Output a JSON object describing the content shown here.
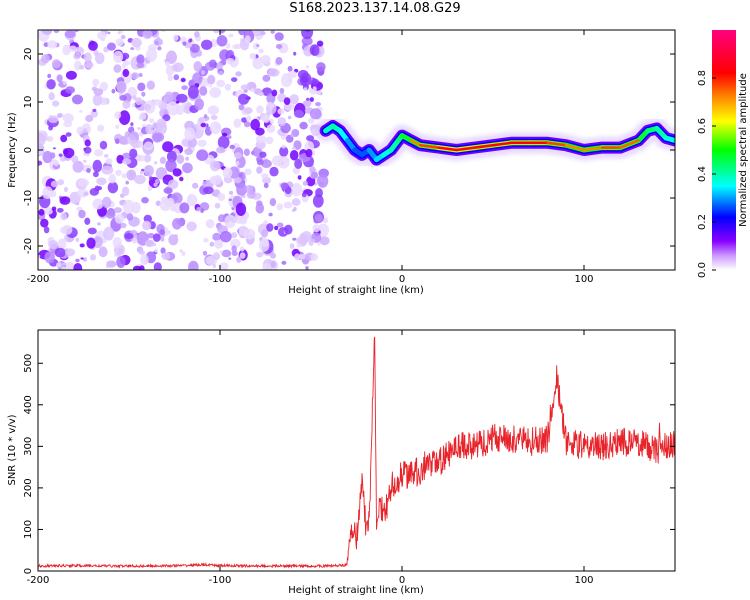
{
  "title": "S168.2023.137.14.08.G29",
  "chart_data": [
    {
      "type": "heatmap",
      "xlabel": "Height of straight line (km)",
      "ylabel": "Frequency (Hz)",
      "xlim": [
        -200,
        150
      ],
      "ylim": [
        -25,
        25
      ],
      "xticks": [
        -200,
        -100,
        0,
        100
      ],
      "yticks": [
        -20,
        -10,
        0,
        10,
        20
      ],
      "colorbar": {
        "label": "Normalized spectral amplitude",
        "range": [
          0,
          1
        ],
        "ticks": [
          "0.0",
          "0.2",
          "0.4",
          "0.6",
          "0.8"
        ]
      },
      "noise_region_x": [
        -200,
        -42
      ],
      "ridge": {
        "x": [
          -42,
          -38,
          -34,
          -30,
          -26,
          -22,
          -18,
          -14,
          -10,
          -6,
          -2,
          0,
          5,
          10,
          20,
          30,
          40,
          50,
          60,
          70,
          80,
          90,
          100,
          110,
          120,
          130,
          135,
          140,
          145,
          150
        ],
        "frequency": [
          4,
          5,
          4,
          2,
          0,
          -1,
          0,
          -2,
          -1,
          0,
          2,
          3,
          2,
          1,
          0.5,
          0,
          0.5,
          1,
          1.5,
          1.5,
          1.5,
          1,
          0,
          0.5,
          0.5,
          2,
          4,
          4.5,
          2.5,
          2
        ],
        "amplitude": [
          0.5,
          0.6,
          0.55,
          0.45,
          0.4,
          0.35,
          0.4,
          0.45,
          0.5,
          0.55,
          0.6,
          0.65,
          0.7,
          0.75,
          0.8,
          0.9,
          0.8,
          0.85,
          0.8,
          0.85,
          0.8,
          0.75,
          0.7,
          0.75,
          0.8,
          0.7,
          0.65,
          0.6,
          0.55,
          0.5
        ]
      }
    },
    {
      "type": "line",
      "xlabel": "Height of straight line (km)",
      "ylabel": "SNR (10 * v/v)",
      "xlim": [
        -200,
        150
      ],
      "ylim": [
        0,
        580
      ],
      "xticks": [
        -200,
        -100,
        0,
        100
      ],
      "yticks": [
        0,
        100,
        200,
        300,
        400,
        500
      ],
      "color": "#e8232a",
      "series": [
        {
          "x": [
            -200,
            -180,
            -160,
            -140,
            -120,
            -110,
            -100,
            -80,
            -60,
            -40,
            -30,
            -28,
            -25,
            -22,
            -20,
            -18,
            -15,
            -14,
            -12,
            -10,
            -5,
            0,
            10,
            20,
            30,
            40,
            50,
            60,
            70,
            80,
            85,
            90,
            100,
            110,
            120,
            130,
            140,
            150
          ],
          "y": [
            12,
            13,
            12,
            12,
            13,
            15,
            13,
            12,
            12,
            12,
            15,
            100,
            80,
            210,
            120,
            110,
            580,
            90,
            160,
            130,
            210,
            230,
            240,
            260,
            300,
            300,
            320,
            320,
            310,
            320,
            470,
            310,
            300,
            300,
            310,
            310,
            290,
            310
          ]
        }
      ]
    }
  ]
}
